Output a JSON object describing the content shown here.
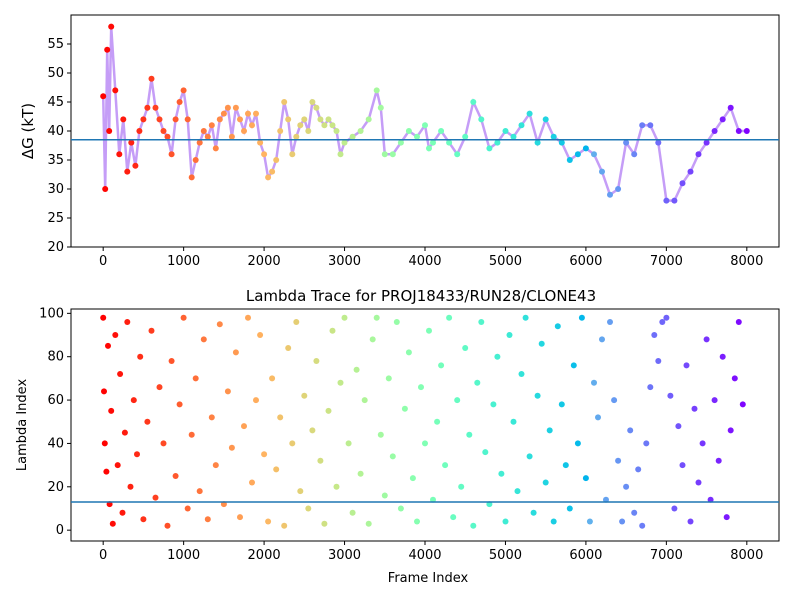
{
  "chart_data": [
    {
      "type": "scatter",
      "title": "",
      "xlabel": "",
      "ylabel": "ΔG (kT)",
      "xlim": [
        -400,
        8400
      ],
      "ylim": [
        20,
        60
      ],
      "xticks": [
        0,
        1000,
        2000,
        3000,
        4000,
        5000,
        6000,
        7000,
        8000
      ],
      "yticks": [
        20,
        25,
        30,
        35,
        40,
        45,
        50,
        55
      ],
      "xtick_labels": [
        "0",
        "1000",
        "2000",
        "3000",
        "4000",
        "5000",
        "6000",
        "7000",
        "8000"
      ],
      "ytick_labels": [
        "20",
        "25",
        "30",
        "35",
        "40",
        "45",
        "50",
        "55"
      ],
      "hline": 38.5,
      "hline_color": "#1f77b4",
      "colormap": "rainbow",
      "color_note": "early frames red/orange, late frames violet",
      "points": {
        "x": [
          0,
          25,
          50,
          75,
          100,
          150,
          200,
          250,
          300,
          350,
          400,
          450,
          500,
          550,
          600,
          650,
          700,
          750,
          800,
          850,
          900,
          950,
          1000,
          1050,
          1100,
          1150,
          1200,
          1250,
          1300,
          1350,
          1400,
          1450,
          1500,
          1550,
          1600,
          1650,
          1700,
          1750,
          1800,
          1850,
          1900,
          1950,
          2000,
          2050,
          2100,
          2150,
          2200,
          2250,
          2300,
          2350,
          2400,
          2450,
          2500,
          2550,
          2600,
          2650,
          2700,
          2750,
          2800,
          2850,
          2900,
          2950,
          3000,
          3100,
          3200,
          3300,
          3400,
          3450,
          3500,
          3600,
          3700,
          3800,
          3900,
          4000,
          4050,
          4100,
          4200,
          4300,
          4400,
          4500,
          4600,
          4700,
          4800,
          4900,
          5000,
          5100,
          5200,
          5300,
          5400,
          5500,
          5600,
          5700,
          5800,
          5900,
          6000,
          6100,
          6200,
          6300,
          6400,
          6500,
          6600,
          6700,
          6800,
          6900,
          7000,
          7100,
          7200,
          7300,
          7400,
          7500,
          7600,
          7700,
          7800,
          7900,
          8000
        ],
        "y": [
          46,
          30,
          54,
          40,
          58,
          47,
          36,
          42,
          33,
          38,
          34,
          40,
          42,
          44,
          49,
          44,
          42,
          40,
          39,
          36,
          42,
          45,
          47,
          42,
          32,
          35,
          38,
          40,
          39,
          41,
          37,
          42,
          43,
          44,
          39,
          44,
          42,
          40,
          43,
          41,
          43,
          38,
          36,
          32,
          33,
          35,
          40,
          45,
          42,
          36,
          39,
          41,
          42,
          40,
          45,
          44,
          42,
          41,
          42,
          41,
          40,
          36,
          38,
          39,
          40,
          42,
          47,
          44,
          36,
          36,
          38,
          40,
          39,
          41,
          37,
          38,
          40,
          38,
          36,
          39,
          45,
          42,
          37,
          38,
          40,
          39,
          41,
          43,
          38,
          42,
          39,
          38,
          35,
          36,
          37,
          36,
          33,
          29,
          30,
          38,
          36,
          41,
          41,
          38,
          28,
          28,
          31,
          33,
          36,
          38,
          40,
          42,
          44,
          40,
          40
        ]
      }
    },
    {
      "type": "scatter",
      "title": "Lambda Trace for PROJ18433/RUN28/CLONE43",
      "xlabel": "Frame Index",
      "ylabel": "Lambda Index",
      "xlim": [
        -400,
        8400
      ],
      "ylim": [
        -5,
        102
      ],
      "xticks": [
        0,
        1000,
        2000,
        3000,
        4000,
        5000,
        6000,
        7000,
        8000
      ],
      "yticks": [
        0,
        20,
        40,
        60,
        80,
        100
      ],
      "xtick_labels": [
        "0",
        "1000",
        "2000",
        "3000",
        "4000",
        "5000",
        "6000",
        "7000",
        "8000"
      ],
      "ytick_labels": [
        "0",
        "20",
        "40",
        "60",
        "80",
        "100"
      ],
      "hline": 13,
      "hline_color": "#1f77b4",
      "colormap": "rainbow",
      "points": {
        "x": [
          0,
          10,
          20,
          40,
          60,
          80,
          100,
          120,
          150,
          180,
          210,
          240,
          270,
          300,
          340,
          380,
          420,
          460,
          500,
          550,
          600,
          650,
          700,
          750,
          800,
          850,
          900,
          950,
          1000,
          1050,
          1100,
          1150,
          1200,
          1250,
          1300,
          1350,
          1400,
          1450,
          1500,
          1550,
          1600,
          1650,
          1700,
          1750,
          1800,
          1850,
          1900,
          1950,
          2000,
          2050,
          2100,
          2150,
          2200,
          2250,
          2300,
          2350,
          2400,
          2450,
          2500,
          2550,
          2600,
          2650,
          2700,
          2750,
          2800,
          2850,
          2900,
          2950,
          3000,
          3050,
          3100,
          3150,
          3200,
          3250,
          3300,
          3350,
          3400,
          3450,
          3500,
          3550,
          3600,
          3650,
          3700,
          3750,
          3800,
          3850,
          3900,
          3950,
          4000,
          4050,
          4100,
          4150,
          4200,
          4250,
          4300,
          4350,
          4400,
          4450,
          4500,
          4550,
          4600,
          4650,
          4700,
          4750,
          4800,
          4850,
          4900,
          4950,
          5000,
          5050,
          5100,
          5150,
          5200,
          5250,
          5300,
          5350,
          5400,
          5450,
          5500,
          5550,
          5600,
          5650,
          5700,
          5750,
          5800,
          5850,
          5900,
          5950,
          6000,
          6050,
          6100,
          6150,
          6200,
          6250,
          6300,
          6350,
          6400,
          6450,
          6500,
          6550,
          6600,
          6650,
          6700,
          6750,
          6800,
          6850,
          6900,
          6950,
          7000,
          7050,
          7100,
          7150,
          7200,
          7250,
          7300,
          7350,
          7400,
          7450,
          7500,
          7550,
          7600,
          7650,
          7700,
          7750,
          7800,
          7850,
          7900,
          7950
        ],
        "y": [
          98,
          64,
          40,
          27,
          85,
          12,
          55,
          3,
          90,
          30,
          72,
          8,
          45,
          96,
          20,
          60,
          35,
          80,
          5,
          50,
          92,
          15,
          66,
          40,
          2,
          78,
          25,
          58,
          98,
          10,
          44,
          70,
          18,
          88,
          5,
          52,
          30,
          95,
          12,
          64,
          38,
          82,
          6,
          48,
          98,
          22,
          60,
          90,
          35,
          4,
          70,
          28,
          52,
          2,
          84,
          40,
          96,
          18,
          62,
          10,
          46,
          78,
          32,
          3,
          55,
          92,
          20,
          68,
          98,
          40,
          8,
          74,
          26,
          60,
          3,
          88,
          98,
          44,
          16,
          70,
          34,
          96,
          10,
          56,
          82,
          24,
          4,
          66,
          40,
          92,
          14,
          50,
          76,
          30,
          98,
          6,
          60,
          20,
          84,
          44,
          2,
          68,
          96,
          36,
          12,
          58,
          80,
          26,
          4,
          90,
          50,
          18,
          72,
          98,
          34,
          8,
          62,
          86,
          22,
          46,
          4,
          94,
          58,
          30,
          10,
          76,
          40,
          98,
          24,
          4,
          68,
          52,
          88,
          14,
          96,
          60,
          32,
          4,
          20,
          46,
          8,
          28,
          2,
          40,
          66,
          90,
          78,
          96,
          98,
          62,
          10,
          48,
          30,
          76,
          4,
          56,
          22,
          40,
          88,
          14,
          60,
          32,
          80,
          6,
          46,
          70,
          96,
          58
        ]
      }
    }
  ]
}
